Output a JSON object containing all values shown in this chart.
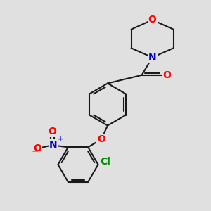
{
  "background_color": "#e0e0e0",
  "bond_color": "#1a1a1a",
  "bond_width": 1.5,
  "atom_colors": {
    "O": "#ff0000",
    "N_morpholine": "#0000cc",
    "N_nitro": "#0000cc",
    "Cl": "#008800",
    "C": "#1a1a1a"
  },
  "font_size_atoms": 10,
  "font_size_charge": 7
}
